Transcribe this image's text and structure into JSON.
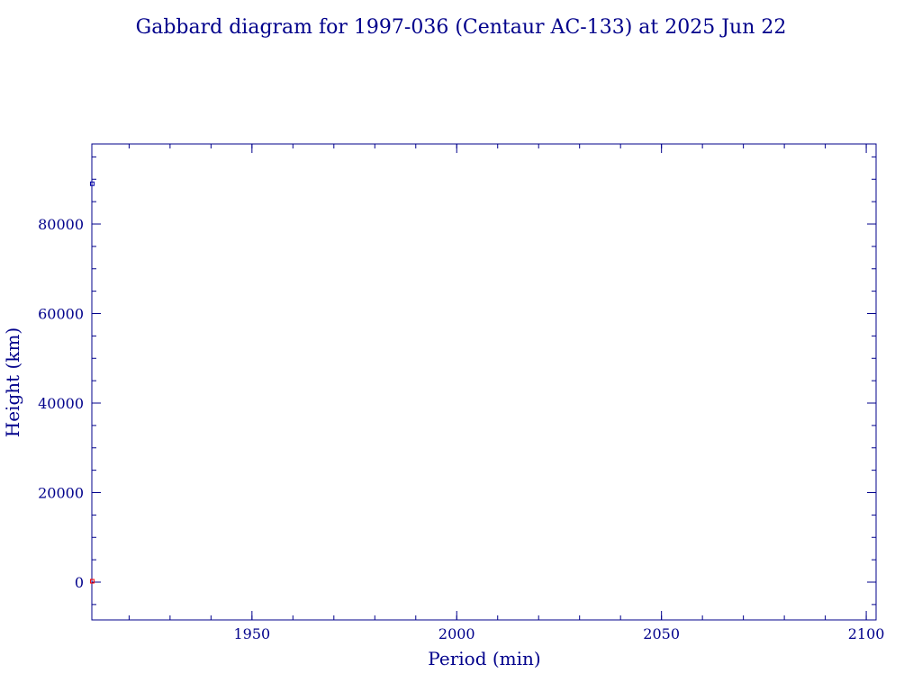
{
  "chart_data": {
    "type": "scatter",
    "title": "Gabbard diagram for 1997-036 (Centaur AC-133) at 2025 Jun 22",
    "x_label": "Period (min)",
    "y_label": "Height (km)",
    "x": [
      1911
    ],
    "series": [
      {
        "color": "#0000aa",
        "values": [
          89000
        ]
      },
      {
        "color": "#ff0000",
        "values": [
          200
        ]
      }
    ],
    "xlim": [
      1910.9,
      2102.4
    ],
    "ylim": [
      -8440,
      97890
    ],
    "xticks": [
      1950,
      2000,
      2050,
      2100
    ],
    "yticks": [
      0,
      20000,
      40000,
      60000,
      80000
    ],
    "xminor_step": 10,
    "yminor_step": 5000,
    "axis_color": "#00008b"
  }
}
